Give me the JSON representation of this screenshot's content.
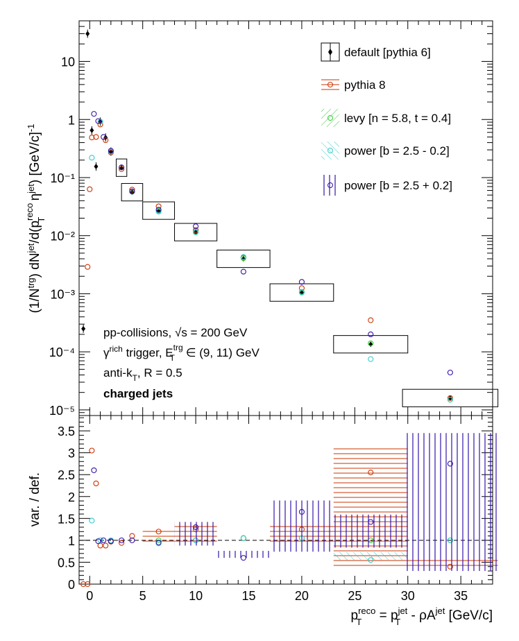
{
  "chart_data": [
    {
      "type": "scatter",
      "panel": "spectrum",
      "ylabel": "(1/N^trg) dN^jet/d(p_T^reco η^jet) [GeV/c]^-1",
      "ytick_labels": [
        "10⁻⁵",
        "10⁻⁴",
        "10⁻³",
        "10⁻²",
        "10⁻¹",
        "1",
        "10"
      ],
      "ytick_values": [
        1e-05,
        0.0001,
        0.001,
        0.01,
        0.1,
        1,
        10
      ],
      "yscale": "log",
      "ylim": [
        8e-06,
        50
      ],
      "xlim": [
        -1,
        38
      ],
      "annotations": {
        "line1": "pp-collisions, √s = 200 GeV",
        "line2_prefix": "γ",
        "line2_sup1": "rich",
        "line2_mid": " trigger, E",
        "line2_sup2": "trg",
        "line2_sub2": "T",
        "line2_suffix": " ∈ (9, 11) GeV",
        "line3_prefix": "anti-k",
        "line3_sub": "T",
        "line3_suffix": ", R = 0.5",
        "line4": "charged jets"
      },
      "legend_position": "top-right",
      "legend": [
        {
          "name": "default [pythia 6]",
          "color": "#000000",
          "marker": "diamond-filled"
        },
        {
          "name": "pythia 8",
          "color": "#cc3300",
          "marker": "circle-open",
          "hatch": "horizontal"
        },
        {
          "name": "levy [n = 5.8, t = 0.4]",
          "color": "#33cc33",
          "marker": "circle-open",
          "hatch": "diagonal"
        },
        {
          "name": "power [b = 2.5 - 0.2]",
          "color": "#33cccc",
          "marker": "circle-open",
          "hatch": "anti-diagonal"
        },
        {
          "name": "power [b = 2.5 + 0.2]",
          "color": "#3311aa",
          "marker": "circle-open",
          "hatch": "vertical"
        }
      ],
      "series": [
        {
          "name": "default [pythia 6]",
          "x": [
            -0.6,
            -0.2,
            0.2,
            0.6,
            1.0,
            1.5,
            2.0,
            3.0,
            4.0,
            6.5,
            10.0,
            14.5,
            20.0,
            26.5,
            34.0
          ],
          "y": [
            0.00025,
            30,
            0.65,
            0.155,
            0.92,
            0.49,
            0.28,
            0.148,
            0.056,
            0.027,
            0.0115,
            0.004,
            0.00105,
            0.000135,
            1.6e-05
          ],
          "x_err": [
            0.2,
            0.2,
            0.2,
            0.2,
            0.2,
            0.25,
            0.25,
            0.5,
            1.0,
            1.5,
            2.0,
            2.5,
            3.0,
            3.5,
            4.5
          ]
        },
        {
          "name": "pythia 8",
          "x": [
            -0.2,
            0.0,
            0.2,
            0.6,
            1.0,
            1.5,
            2.0,
            3.0,
            4.0,
            6.5,
            10.0,
            14.5,
            20.0,
            26.5,
            34.0
          ],
          "y": [
            0.0029,
            0.063,
            0.49,
            0.5,
            0.82,
            0.44,
            0.27,
            0.14,
            0.062,
            0.032,
            0.0125,
            0.0042,
            0.00125,
            0.00035,
            1.6e-05
          ]
        },
        {
          "name": "levy [n = 5.8, t = 0.4]",
          "x": [
            4.0,
            6.5,
            10.0,
            14.5,
            20.0,
            26.5,
            34.0
          ],
          "y": [
            0.057,
            0.027,
            0.0117,
            0.0041,
            0.00108,
            0.00014,
            1.5e-05
          ]
        },
        {
          "name": "power [b = 2.5 - 0.2]",
          "x": [
            0.2,
            1.0,
            2.0,
            6.5,
            10.0,
            14.5,
            20.0,
            26.5,
            34.0
          ],
          "y": [
            0.22,
            0.92,
            0.28,
            0.026,
            0.0114,
            0.0043,
            0.00105,
            7.5e-05,
            1.5e-05
          ]
        },
        {
          "name": "power [b = 2.5 + 0.2]",
          "x": [
            0.4,
            0.8,
            1.3,
            2.0,
            3.0,
            4.0,
            6.5,
            10.0,
            14.5,
            20.0,
            26.5,
            34.0
          ],
          "y": [
            1.25,
            0.94,
            0.5,
            0.29,
            0.15,
            0.058,
            0.028,
            0.0145,
            0.0024,
            0.0016,
            0.0002,
            4.4e-05
          ]
        }
      ]
    },
    {
      "type": "scatter",
      "panel": "ratio",
      "ylabel": "var. / def.",
      "xlabel_parts": {
        "p": "p",
        "sup1": "reco",
        "sub1": "T",
        "mid1": " = p",
        "sup2": "jet",
        "sub2": "T",
        "mid2": " - ρA",
        "sup3": "jet",
        "suffix": " [GeV/c]"
      },
      "xtick_labels": [
        "0",
        "5",
        "10",
        "15",
        "20",
        "25",
        "30",
        "35"
      ],
      "xtick_values": [
        0,
        5,
        10,
        15,
        20,
        25,
        30,
        35
      ],
      "ytick_labels": [
        "0",
        "0.5",
        "1",
        "1.5",
        "2",
        "2.5",
        "3",
        "3.5"
      ],
      "ytick_values": [
        0,
        0.5,
        1,
        1.5,
        2,
        2.5,
        3,
        3.5
      ],
      "xlim": [
        -1,
        38
      ],
      "ylim": [
        0,
        3.85
      ],
      "reference_line": 1,
      "series": [
        {
          "name": "pythia 8",
          "x": [
            -0.6,
            -0.2,
            0.2,
            0.6,
            1.0,
            1.5,
            2.0,
            3.0,
            4.0,
            6.5,
            10.0,
            14.5,
            20.0,
            26.5,
            34.0
          ],
          "y": [
            0.0,
            0.0,
            3.05,
            2.3,
            0.88,
            0.88,
            0.97,
            0.94,
            1.1,
            1.2,
            1.25,
            1.05,
            1.25,
            2.55,
            0.4
          ]
        },
        {
          "name": "levy [n = 5.8, t = 0.4]",
          "x": [
            6.5,
            10.0,
            14.5,
            20.0,
            26.5,
            34.0
          ],
          "y": [
            1.0,
            1.0,
            1.05,
            1.05,
            1.0,
            1.0
          ]
        },
        {
          "name": "power [b = 2.5 - 0.2]",
          "x": [
            0.2,
            1.0,
            2.0,
            6.5,
            10.0,
            14.5,
            20.0,
            26.5,
            34.0
          ],
          "y": [
            1.45,
            1.0,
            1.0,
            0.93,
            1.0,
            1.05,
            1.05,
            0.55,
            1.0
          ]
        },
        {
          "name": "power [b = 2.5 + 0.2]",
          "x": [
            0.4,
            0.8,
            1.3,
            2.0,
            3.0,
            4.0,
            6.5,
            10.0,
            14.5,
            20.0,
            26.5,
            34.0
          ],
          "y": [
            2.6,
            0.98,
            1.0,
            0.98,
            1.0,
            1.0,
            0.95,
            1.3,
            0.6,
            1.65,
            1.42,
            2.75
          ]
        }
      ]
    }
  ]
}
